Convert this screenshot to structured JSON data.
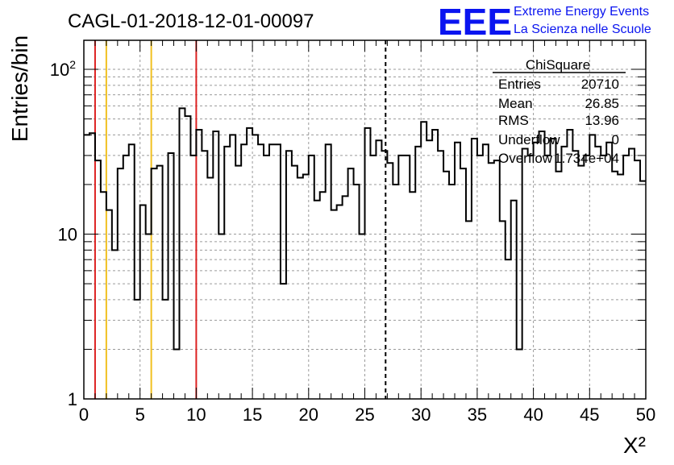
{
  "header": {
    "title": "CAGL-01-2018-12-01-00097",
    "logo_text": "EEE",
    "logo_line1": "Extreme Energy Events",
    "logo_line2": "La Scienza nelle Scuole",
    "logo_color": "#0a14f0"
  },
  "stats": {
    "title": "ChiSquare",
    "rows": [
      {
        "label": "Entries",
        "value": "20710"
      },
      {
        "label": "Mean",
        "value": "26.85"
      },
      {
        "label": "RMS",
        "value": "13.96"
      },
      {
        "label": "Underflow",
        "value": "0"
      },
      {
        "label": "Overflow",
        "value": "1.734e+04"
      }
    ]
  },
  "chart_data": {
    "type": "histogram",
    "title": "CAGL-01-2018-12-01-00097",
    "xlabel": "X²",
    "ylabel": "Entries/bin",
    "xlim": [
      0,
      50
    ],
    "ylim": [
      1,
      150
    ],
    "y_scale": "log",
    "x_ticks": [
      "0",
      "5",
      "10",
      "15",
      "20",
      "25",
      "30",
      "35",
      "40",
      "45",
      "50"
    ],
    "y_ticks": [
      {
        "value": 1,
        "label": "1"
      },
      {
        "value": 10,
        "label": "10"
      },
      {
        "value": 100,
        "label": "10²"
      }
    ],
    "grid": true,
    "bin_width": 0.5,
    "values": [
      40,
      41,
      28,
      18,
      14,
      8,
      25,
      30,
      35,
      4,
      15,
      10,
      25,
      26,
      4,
      31,
      2,
      58,
      52,
      30,
      43,
      32,
      22,
      42,
      10,
      34,
      40,
      26,
      35,
      44,
      40,
      35,
      30,
      35,
      35,
      5,
      32,
      26,
      22,
      23,
      30,
      16,
      18,
      35,
      14,
      15,
      17,
      25,
      20,
      10,
      44,
      30,
      37,
      32,
      27,
      20,
      30,
      30,
      18,
      34,
      48,
      37,
      43,
      32,
      24,
      20,
      36,
      25,
      12,
      38,
      30,
      35,
      27,
      28,
      12,
      7,
      16,
      2,
      33,
      30,
      36,
      42,
      30,
      38,
      24,
      34,
      43,
      32,
      26,
      30,
      40,
      34,
      30,
      36,
      24,
      23,
      30,
      33,
      28,
      21
    ],
    "vertical_lines": [
      {
        "x": 1,
        "color": "#dd2222",
        "style": "solid"
      },
      {
        "x": 2,
        "color": "#f0c020",
        "style": "solid"
      },
      {
        "x": 6,
        "color": "#f0c020",
        "style": "solid"
      },
      {
        "x": 10,
        "color": "#dd2222",
        "style": "solid"
      },
      {
        "x": 26.85,
        "color": "#000000",
        "style": "dashed"
      }
    ]
  }
}
